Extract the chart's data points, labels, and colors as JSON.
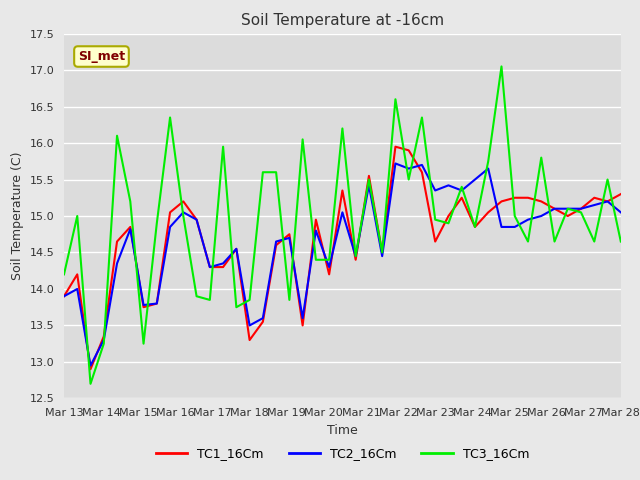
{
  "title": "Soil Temperature at -16cm",
  "xlabel": "Time",
  "ylabel": "Soil Temperature (C)",
  "ylim": [
    12.5,
    17.5
  ],
  "background_color": "#e8e8e8",
  "plot_bg_color": "#dcdcdc",
  "grid_color": "#ffffff",
  "annotation_text": "SI_met",
  "annotation_bg": "#ffffcc",
  "annotation_border": "#aaaa00",
  "legend_labels": [
    "TC1_16Cm",
    "TC2_16Cm",
    "TC3_16Cm"
  ],
  "line_colors": [
    "#ff0000",
    "#0000ff",
    "#00ee00"
  ],
  "x_tick_labels": [
    "Mar 13",
    "Mar 14",
    "Mar 15",
    "Mar 16",
    "Mar 17",
    "Mar 18",
    "Mar 19",
    "Mar 20",
    "Mar 21",
    "Mar 22",
    "Mar 23",
    "Mar 24",
    "Mar 25",
    "Mar 26",
    "Mar 27",
    "Mar 28"
  ],
  "tc1": [
    13.9,
    14.2,
    12.9,
    13.35,
    14.65,
    14.85,
    13.75,
    13.8,
    15.05,
    15.2,
    14.95,
    14.3,
    14.3,
    14.55,
    13.3,
    13.55,
    14.6,
    14.75,
    13.5,
    14.95,
    14.2,
    15.35,
    14.4,
    15.55,
    14.5,
    15.95,
    15.9,
    15.6,
    14.65,
    15.0,
    15.25,
    14.85,
    15.05,
    15.2,
    15.25,
    15.25,
    15.2,
    15.1,
    15.0,
    15.1,
    15.25,
    15.2,
    15.3
  ],
  "tc2": [
    13.9,
    14.0,
    12.95,
    13.3,
    14.35,
    14.82,
    13.78,
    13.8,
    14.85,
    15.05,
    14.95,
    14.3,
    14.35,
    14.55,
    13.5,
    13.6,
    14.65,
    14.7,
    13.6,
    14.8,
    14.3,
    15.05,
    14.45,
    15.42,
    14.45,
    15.72,
    15.65,
    15.7,
    15.35,
    15.42,
    15.35,
    15.5,
    15.65,
    14.85,
    14.85,
    14.95,
    15.0,
    15.1,
    15.1,
    15.1,
    15.15,
    15.2,
    15.05
  ],
  "tc3": [
    14.2,
    15.0,
    12.7,
    13.25,
    16.1,
    15.2,
    13.25,
    14.9,
    16.35,
    15.0,
    13.9,
    13.85,
    15.95,
    13.75,
    13.85,
    15.6,
    15.6,
    13.85,
    16.05,
    14.4,
    14.4,
    16.2,
    14.45,
    15.5,
    14.5,
    16.6,
    15.5,
    16.35,
    14.95,
    14.9,
    15.4,
    14.85,
    15.75,
    17.05,
    15.0,
    14.65,
    15.8,
    14.65,
    15.1,
    15.05,
    14.65,
    15.5,
    14.65
  ]
}
